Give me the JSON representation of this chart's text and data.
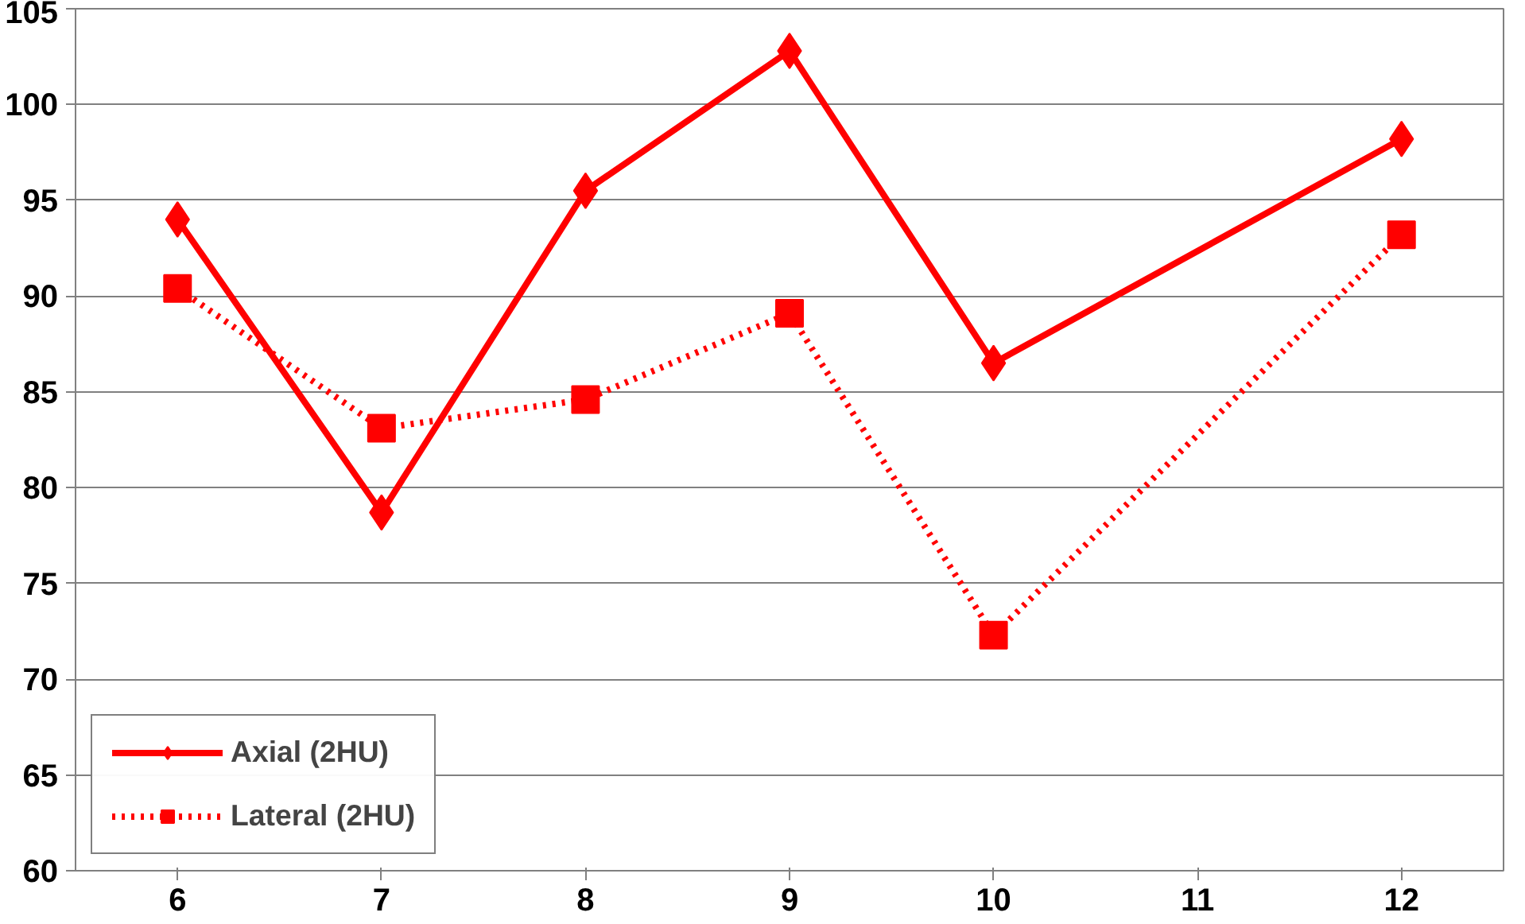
{
  "chart_data": {
    "type": "line",
    "x": [
      6,
      7,
      8,
      9,
      10,
      12
    ],
    "xlim": [
      5.5,
      12.5
    ],
    "xticks": [
      6,
      7,
      8,
      9,
      10,
      11,
      12
    ],
    "ylim": [
      60,
      105
    ],
    "yticks": [
      60,
      65,
      70,
      75,
      80,
      85,
      90,
      95,
      100,
      105
    ],
    "grid": "y",
    "legend": "bottom left",
    "series": [
      {
        "name": "Axial (2HU)",
        "color": "#ff0000",
        "marker": "diamond",
        "line_style": "solid",
        "values": [
          94.0,
          78.7,
          95.5,
          102.8,
          86.5,
          98.2
        ]
      },
      {
        "name": "Lateral (2HU)",
        "color": "#ff0000",
        "marker": "square",
        "line_style": "dotted",
        "values": [
          90.4,
          83.1,
          84.6,
          89.1,
          72.3,
          93.2
        ]
      }
    ]
  }
}
